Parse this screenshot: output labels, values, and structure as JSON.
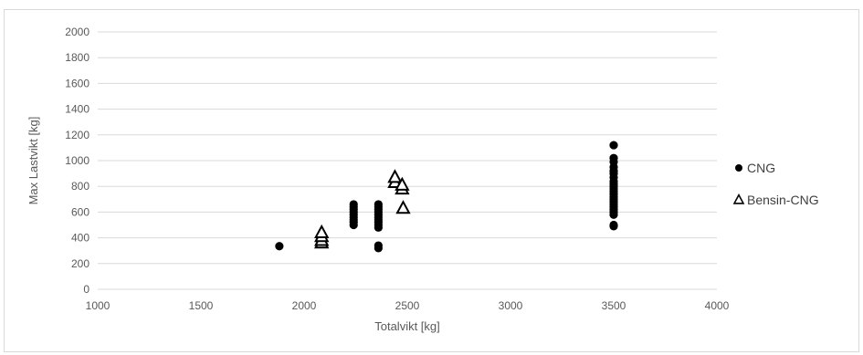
{
  "chart_data": {
    "type": "scatter",
    "title": "",
    "xlabel": "Totalvikt [kg]",
    "ylabel": "Max Lastvikt [kg]",
    "xlim": [
      1000,
      4000
    ],
    "ylim": [
      0,
      2000
    ],
    "xticks": [
      1000,
      1500,
      2000,
      2500,
      3000,
      3500,
      4000
    ],
    "yticks": [
      0,
      200,
      400,
      600,
      800,
      1000,
      1200,
      1400,
      1600,
      1800,
      2000
    ],
    "grid": "horizontal",
    "legend_position": "right",
    "series": [
      {
        "name": "CNG",
        "marker": "filled-circle",
        "color": "#000000",
        "points": [
          [
            1880,
            335
          ],
          [
            2240,
            500
          ],
          [
            2240,
            520
          ],
          [
            2240,
            540
          ],
          [
            2240,
            560
          ],
          [
            2240,
            580
          ],
          [
            2240,
            600
          ],
          [
            2240,
            620
          ],
          [
            2240,
            640
          ],
          [
            2240,
            660
          ],
          [
            2360,
            320
          ],
          [
            2360,
            340
          ],
          [
            2360,
            480
          ],
          [
            2360,
            500
          ],
          [
            2360,
            520
          ],
          [
            2360,
            540
          ],
          [
            2360,
            560
          ],
          [
            2360,
            580
          ],
          [
            2360,
            600
          ],
          [
            2360,
            620
          ],
          [
            2360,
            640
          ],
          [
            2360,
            660
          ],
          [
            3500,
            490
          ],
          [
            3500,
            500
          ],
          [
            3500,
            580
          ],
          [
            3500,
            600
          ],
          [
            3500,
            620
          ],
          [
            3500,
            640
          ],
          [
            3500,
            660
          ],
          [
            3500,
            680
          ],
          [
            3500,
            700
          ],
          [
            3500,
            720
          ],
          [
            3500,
            740
          ],
          [
            3500,
            760
          ],
          [
            3500,
            780
          ],
          [
            3500,
            800
          ],
          [
            3500,
            820
          ],
          [
            3500,
            840
          ],
          [
            3500,
            870
          ],
          [
            3500,
            900
          ],
          [
            3500,
            920
          ],
          [
            3500,
            950
          ],
          [
            3500,
            990
          ],
          [
            3500,
            1020
          ],
          [
            3500,
            1120
          ]
        ]
      },
      {
        "name": "Bensin-CNG",
        "marker": "open-triangle",
        "color": "#000000",
        "points": [
          [
            2085,
            360
          ],
          [
            2085,
            380
          ],
          [
            2085,
            410
          ],
          [
            2085,
            440
          ],
          [
            2440,
            830
          ],
          [
            2440,
            870
          ],
          [
            2475,
            780
          ],
          [
            2475,
            810
          ],
          [
            2480,
            630
          ]
        ]
      }
    ]
  }
}
